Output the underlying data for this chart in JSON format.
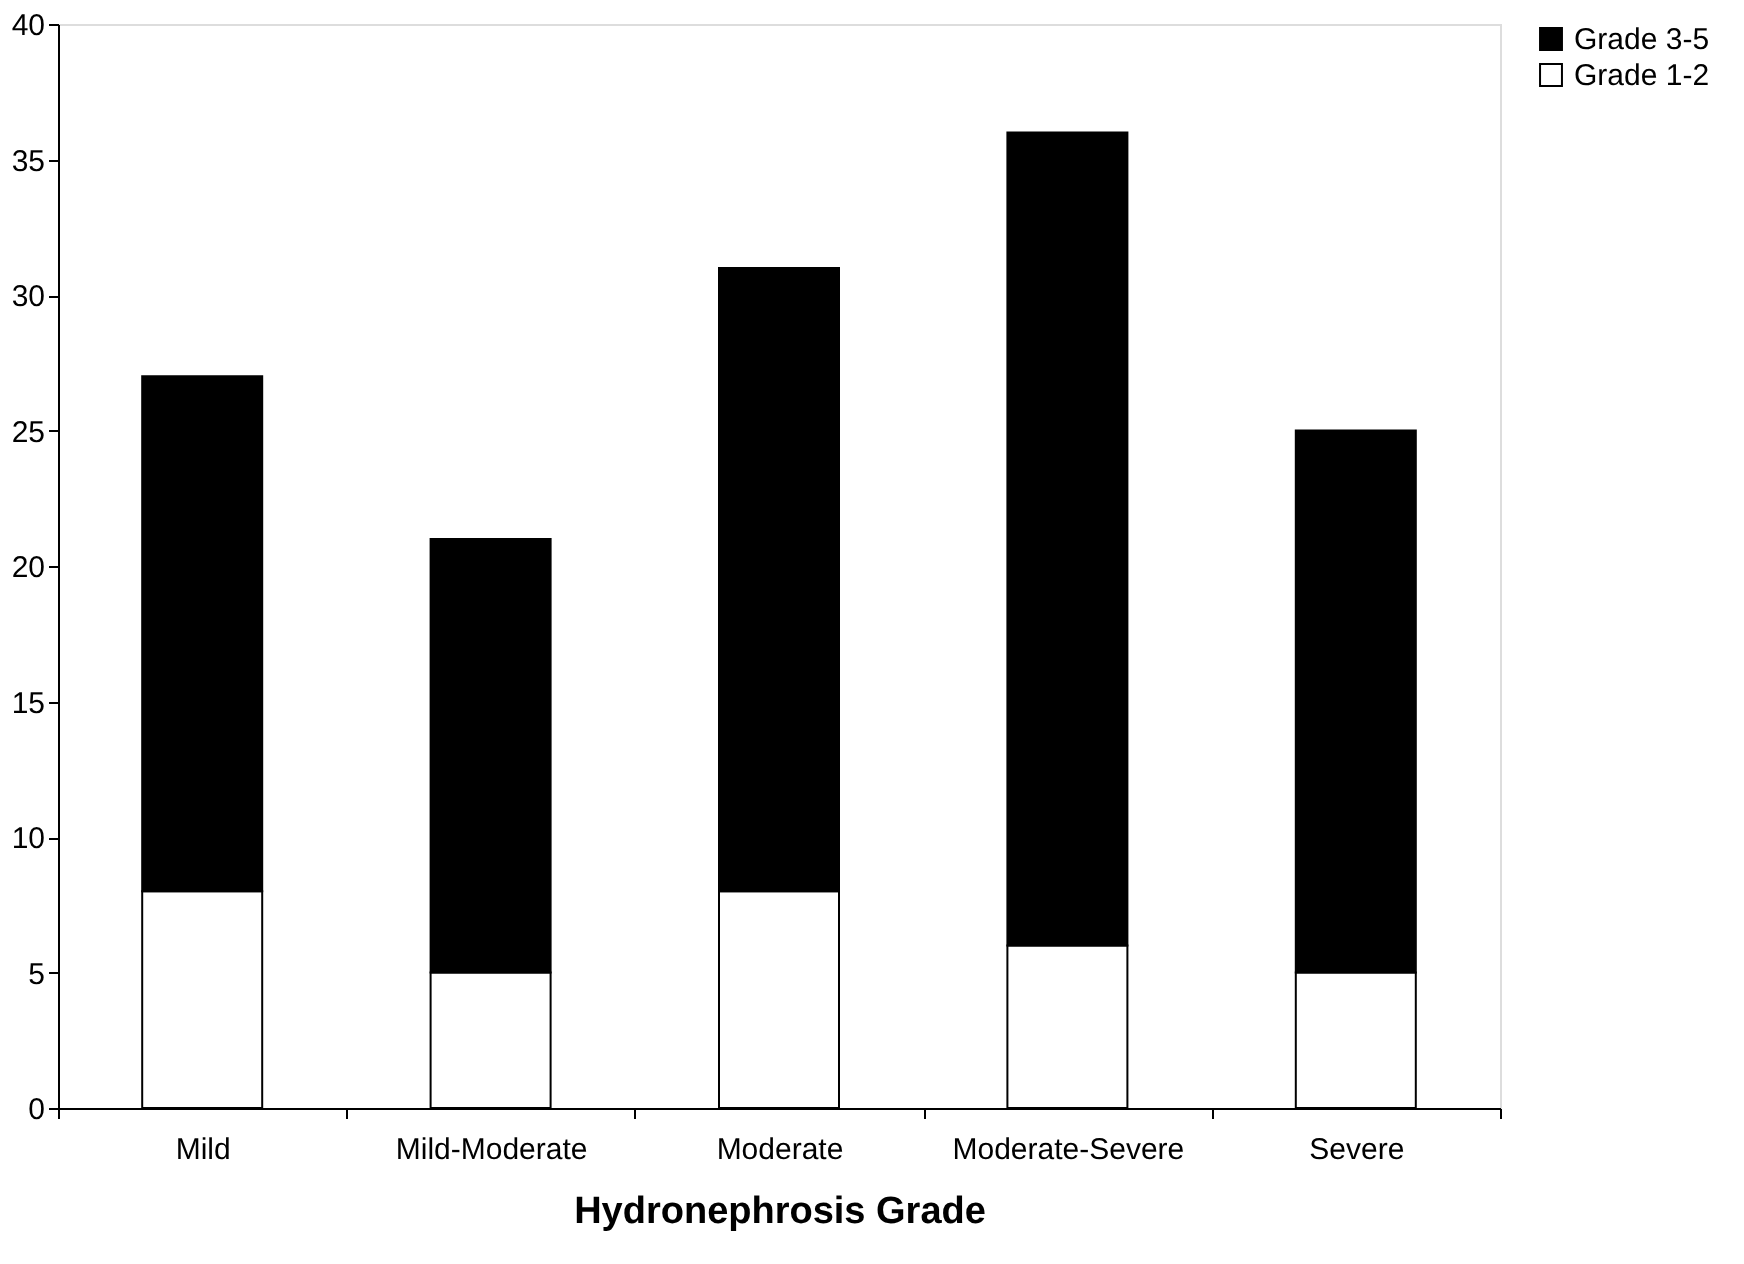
{
  "chart_data": {
    "type": "bar",
    "stacked": true,
    "xlabel": "Hydronephrosis Grade",
    "categories": [
      "Mild",
      "Mild-Moderate",
      "Moderate",
      "Moderate-Severe",
      "Severe"
    ],
    "series": [
      {
        "name": "Grade 1-2",
        "color": "#ffffff",
        "values": [
          8,
          5,
          8,
          6,
          5
        ]
      },
      {
        "name": "Grade 3-5",
        "color": "#000000",
        "values": [
          19,
          16,
          23,
          30,
          20
        ]
      }
    ],
    "ylim": [
      0,
      40
    ],
    "yticks": [
      0,
      5,
      10,
      15,
      20,
      25,
      30,
      35,
      40
    ],
    "grid": false,
    "legend": "right"
  }
}
